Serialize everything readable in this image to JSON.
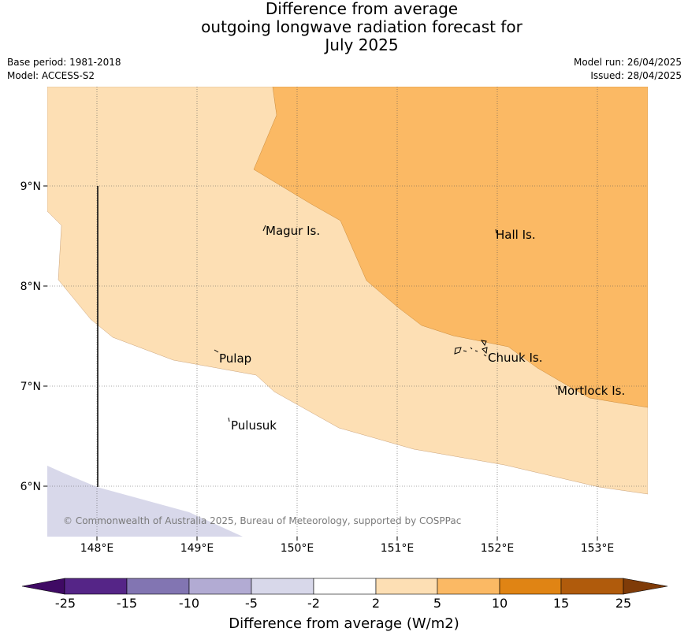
{
  "title": {
    "line1": "Difference from average",
    "line2": "outgoing longwave radiation forecast for",
    "line3": "July 2025"
  },
  "meta": {
    "base_period": "Base period: 1981-2018",
    "model": "Model: ACCESS-S2",
    "model_run": "Model run: 26/04/2025",
    "issued": "Issued: 28/04/2025"
  },
  "map": {
    "extent": {
      "lon": [
        147.5,
        153.5
      ],
      "lat": [
        5.5,
        10.0
      ]
    },
    "lon_ticks": [
      "148°E",
      "149°E",
      "150°E",
      "151°E",
      "152°E",
      "153°E"
    ],
    "lat_ticks": [
      "9°N",
      "8°N",
      "7°N",
      "6°N"
    ],
    "places": [
      "Magur Is.",
      "Hall Is.",
      "Pulap",
      "Chuuk Is.",
      "Mortlock Is.",
      "Pulusuk"
    ],
    "copyright": "© Commonwealth of Australia 2025, Bureau of Meteorology, supported by COSPPac",
    "regions": [
      {
        "category": "2 to 5",
        "color": "#fddfb4"
      },
      {
        "category": "5 to 10",
        "color": "#fbb964"
      },
      {
        "category": "-5 to -2",
        "color": "#d8d8ea"
      },
      {
        "category": "-2 to 2",
        "color": "#ffffff"
      }
    ]
  },
  "colorbar": {
    "title": "Difference from average (W/m2)",
    "tick_labels": [
      "-25",
      "-15",
      "-10",
      "-5",
      "-2",
      "2",
      "5",
      "10",
      "15",
      "25"
    ],
    "colors": [
      "#3f0a64",
      "#552587",
      "#8275b2",
      "#b2abd3",
      "#d8d8ea",
      "#ffffff",
      "#fddfb4",
      "#fbb964",
      "#e08414",
      "#b05b0c",
      "#7f3b08"
    ]
  }
}
